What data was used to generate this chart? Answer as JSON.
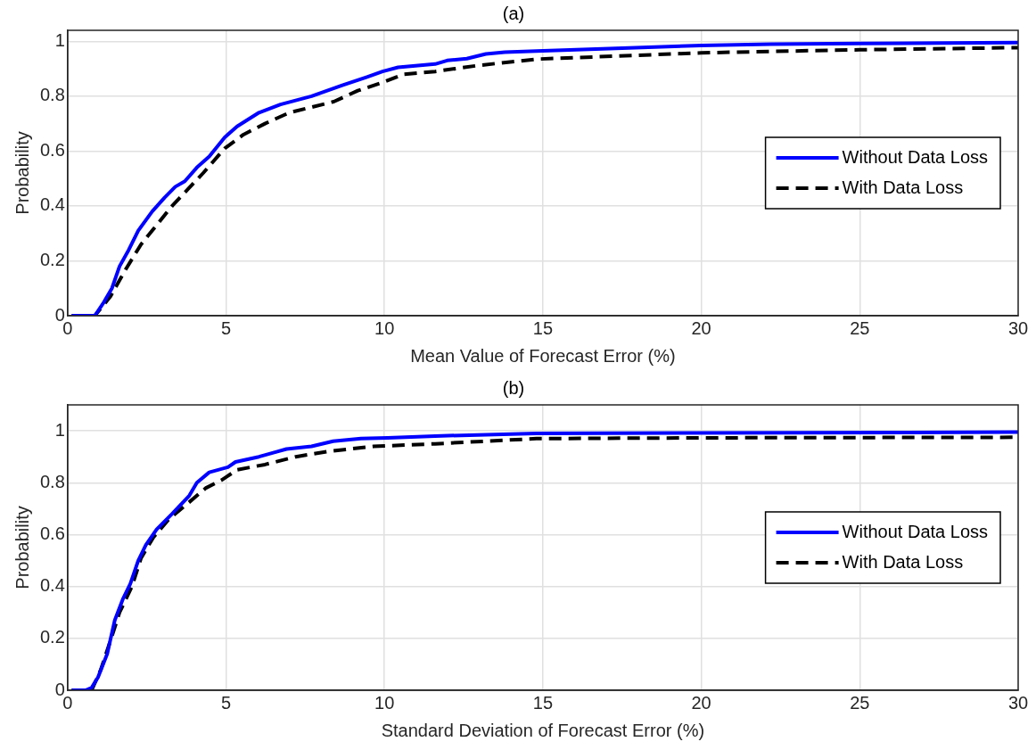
{
  "chart_data": [
    {
      "type": "line",
      "title": "(a)",
      "xlabel": "Mean Value of Forecast Error (%)",
      "ylabel": "Probability",
      "xlim": [
        0,
        30
      ],
      "xticks": [
        0,
        5,
        10,
        15,
        20,
        25,
        30
      ],
      "ylim": [
        0,
        1.04
      ],
      "yticks": [
        0,
        0.2,
        0.4,
        0.6,
        0.8,
        1
      ],
      "grid": true,
      "legend": "right",
      "series": [
        {
          "name": "Without Data Loss",
          "color": "#0000ff",
          "line_style": "solid",
          "x": [
            0.13,
            0.86,
            1.15,
            1.4,
            1.64,
            1.93,
            2.23,
            2.67,
            3.06,
            3.4,
            3.7,
            4.08,
            4.47,
            4.96,
            5.35,
            6.04,
            6.72,
            7.7,
            8.67,
            9.45,
            9.94,
            10.43,
            10.9,
            11.6,
            11.98,
            12.6,
            13.2,
            13.8,
            15,
            17.3,
            20,
            22.2,
            25,
            30
          ],
          "values": [
            0,
            0,
            0.05,
            0.1,
            0.18,
            0.24,
            0.31,
            0.38,
            0.43,
            0.47,
            0.49,
            0.54,
            0.58,
            0.65,
            0.69,
            0.74,
            0.77,
            0.8,
            0.84,
            0.87,
            0.89,
            0.905,
            0.91,
            0.917,
            0.93,
            0.937,
            0.954,
            0.96,
            0.965,
            0.974,
            0.985,
            0.99,
            0.992,
            0.995
          ]
        },
        {
          "name": "With Data Loss",
          "color": "#000000",
          "line_style": "dashed",
          "x": [
            0.13,
            0.86,
            1.35,
            1.84,
            2.32,
            2.81,
            3.3,
            3.79,
            4.28,
            4.96,
            5.55,
            6.23,
            7,
            7.7,
            8.4,
            9.16,
            9.94,
            10.6,
            11.6,
            12.96,
            14.8,
            17.3,
            20,
            23.5,
            25,
            30
          ],
          "values": [
            0,
            0,
            0.07,
            0.17,
            0.26,
            0.33,
            0.4,
            0.46,
            0.52,
            0.61,
            0.66,
            0.7,
            0.74,
            0.76,
            0.78,
            0.82,
            0.85,
            0.88,
            0.89,
            0.912,
            0.935,
            0.946,
            0.958,
            0.966,
            0.969,
            0.977
          ]
        }
      ]
    },
    {
      "type": "line",
      "title": "(b)",
      "xlabel": "Standard Deviation of Forecast Error (%)",
      "ylabel": "Probability",
      "xlim": [
        0,
        30
      ],
      "xticks": [
        0,
        5,
        10,
        15,
        20,
        25,
        30
      ],
      "ylim": [
        0,
        1.1
      ],
      "yticks": [
        0,
        0.2,
        0.4,
        0.6,
        0.8,
        1
      ],
      "grid": true,
      "legend": "right",
      "series": [
        {
          "name": "Without Data Loss",
          "color": "#0000ff",
          "line_style": "solid",
          "x": [
            0.13,
            0.57,
            0.76,
            0.96,
            1.25,
            1.49,
            1.74,
            1.98,
            2.23,
            2.47,
            2.81,
            3.3,
            3.84,
            4.08,
            4.47,
            5.06,
            5.3,
            6.04,
            6.62,
            6.91,
            7.7,
            8.38,
            9.26,
            10.1,
            11.6,
            14.8,
            30
          ],
          "values": [
            0,
            0,
            0.01,
            0.05,
            0.14,
            0.27,
            0.35,
            0.41,
            0.5,
            0.56,
            0.62,
            0.68,
            0.75,
            0.8,
            0.84,
            0.86,
            0.88,
            0.9,
            0.92,
            0.93,
            0.94,
            0.96,
            0.97,
            0.973,
            0.98,
            0.99,
            0.995
          ]
        },
        {
          "name": "With Data Loss",
          "color": "#000000",
          "line_style": "dashed",
          "x": [
            0.13,
            0.76,
            1.05,
            1.35,
            1.64,
            2.03,
            2.32,
            2.71,
            3.2,
            3.79,
            4.37,
            4.86,
            5.35,
            6.23,
            7.2,
            8.2,
            9.65,
            11.6,
            14.8,
            20,
            30
          ],
          "values": [
            0,
            0,
            0.08,
            0.19,
            0.3,
            0.4,
            0.51,
            0.59,
            0.66,
            0.72,
            0.78,
            0.81,
            0.85,
            0.87,
            0.9,
            0.92,
            0.94,
            0.95,
            0.97,
            0.973,
            0.975
          ]
        }
      ]
    }
  ]
}
